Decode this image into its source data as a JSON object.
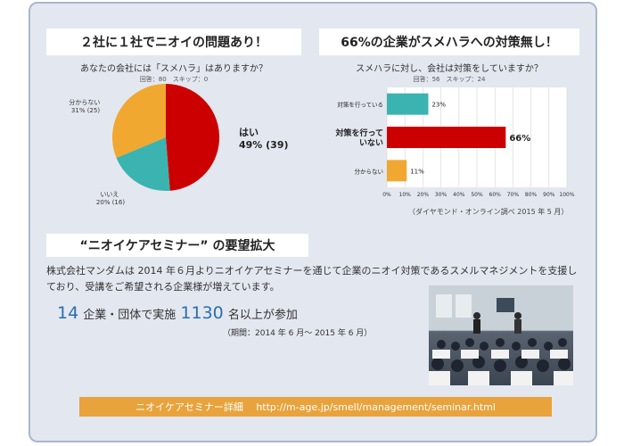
{
  "left_chart": {
    "heading": "２社に１社でニオイの問題あり！",
    "question": "あなたの会社には「スメハラ」はありますか？",
    "stats": "回答：80　スキップ：0"
  },
  "right_chart": {
    "heading": "66%の企業がスメハラへの対策無し！",
    "question": "スメハラに対し、会社は対策をしていますか？",
    "stats": "回答：56　スキップ：24",
    "source": "（ダイヤモンド・オンライン調べ 2015 年 5 月）"
  },
  "chart_data": [
    {
      "type": "pie",
      "title": "あなたの会社には「スメハラ」はありますか？",
      "slices": [
        {
          "label_line1": "はい",
          "label_line2": "49% (39)",
          "value": 39,
          "percent": 49,
          "color": "#cc0000"
        },
        {
          "label_line1": "いいえ",
          "label_line2": "20% (16)",
          "value": 16,
          "percent": 20,
          "color": "#3bb3b0"
        },
        {
          "label_line1": "分からない",
          "label_line2": "31% (25)",
          "value": 25,
          "percent": 31,
          "color": "#f0a830"
        }
      ]
    },
    {
      "type": "bar",
      "orientation": "horizontal",
      "title": "スメハラに対し、会社は対策をしていますか？",
      "categories": [
        {
          "line1": "対策を行っている",
          "line2": ""
        },
        {
          "line1": "対策を行って",
          "line2": "いない"
        },
        {
          "line1": "分からない",
          "line2": ""
        }
      ],
      "values": [
        23,
        66,
        11
      ],
      "value_labels": [
        "23%",
        "66%",
        "11%"
      ],
      "colors": [
        "#3bb3b0",
        "#cc0000",
        "#f0a830"
      ],
      "xlim": [
        0,
        100
      ],
      "xticks": [
        "0%",
        "10%",
        "20%",
        "30%",
        "40%",
        "50%",
        "60%",
        "70%",
        "80%",
        "90%",
        "100%"
      ],
      "grid": true
    }
  ],
  "demand": {
    "heading": "“ニオイケアセミナー” の要望拡大",
    "body": "株式会社マンダムは 2014 年６月よりニオイケアセミナーを通じて企業のニオイ対策であるスメルマネジメントを支援しており、受講をご希望される企業様が増えています。",
    "count1": "14",
    "text1": "企業・団体で実施",
    "count2": "1130",
    "text2": "名以上が参加",
    "period": "（期間：2014 年 6 月～ 2015 年 6 月）"
  },
  "footer": {
    "link_label": "ニオイケアセミナー詳細　 http://m-age.jp/smell/management/seminar.html"
  }
}
